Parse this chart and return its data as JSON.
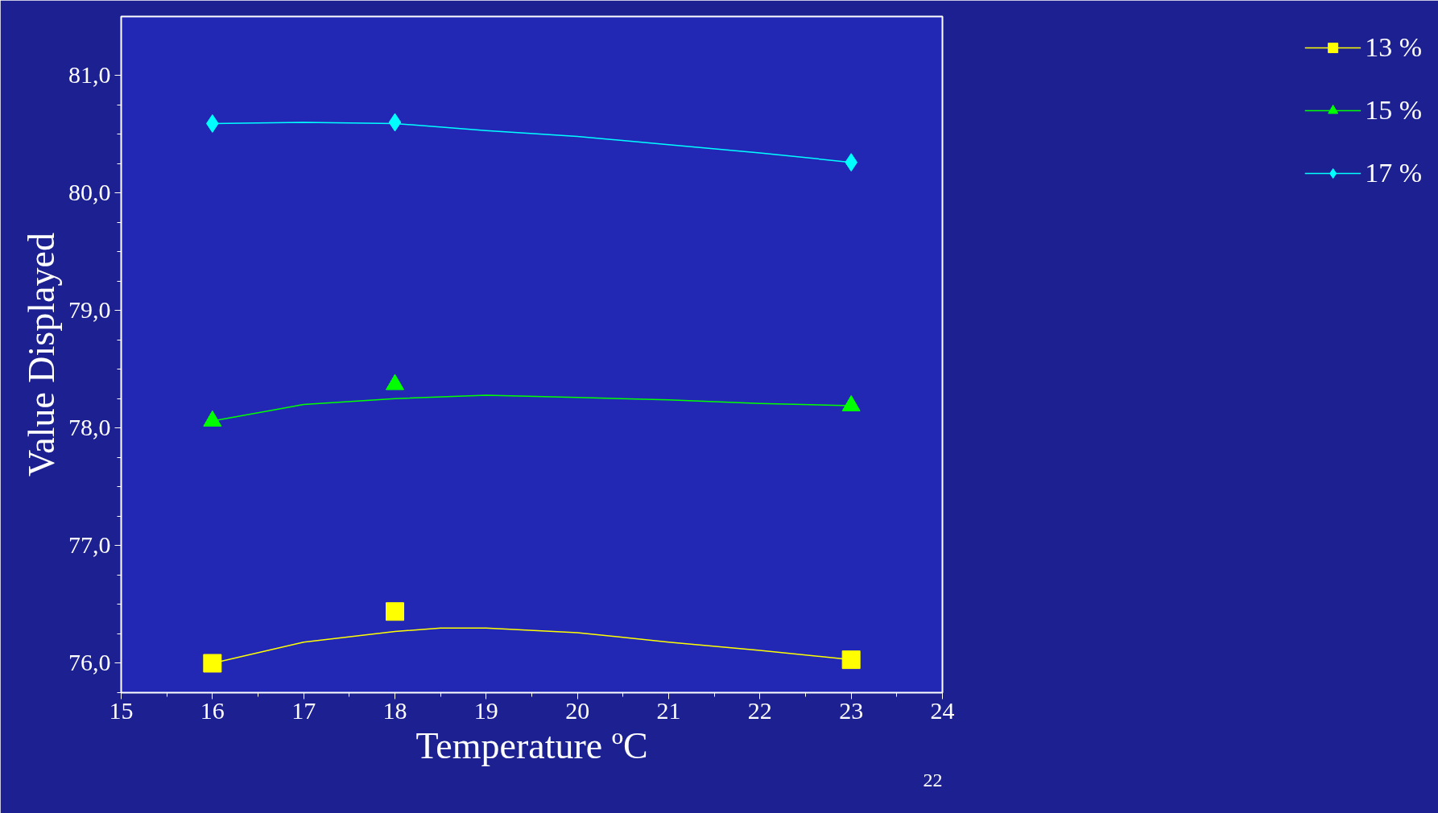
{
  "chart_data": {
    "type": "scatter",
    "xlabel": "Temperature ºC",
    "ylabel": "Value Displayed",
    "xlim": [
      15,
      24
    ],
    "xticks": [
      15,
      16,
      17,
      18,
      19,
      20,
      21,
      22,
      23,
      24
    ],
    "ylim": [
      75.75,
      81.5
    ],
    "yticks": [
      {
        "value": 76,
        "label": "76,0"
      },
      {
        "value": 77,
        "label": "77,0"
      },
      {
        "value": 78,
        "label": "78,0"
      },
      {
        "value": 79,
        "label": "79,0"
      },
      {
        "value": 80,
        "label": "80,0"
      },
      {
        "value": 81,
        "label": "81,0"
      }
    ],
    "grid": false,
    "legend": "right",
    "annotations": [
      "22"
    ],
    "series": [
      {
        "name": "13 %",
        "color": "#ffff00",
        "marker": "square",
        "x": [
          16,
          18,
          23
        ],
        "values": [
          76.0,
          76.44,
          76.03
        ]
      },
      {
        "name": "15 %",
        "color": "#00ff00",
        "marker": "triangle",
        "x": [
          16,
          18,
          23
        ],
        "values": [
          78.06,
          78.37,
          78.19
        ]
      },
      {
        "name": "17 %",
        "color": "#00ffff",
        "marker": "diamond",
        "x": [
          16,
          18,
          23
        ],
        "values": [
          80.59,
          80.6,
          80.26
        ]
      },
      {
        "type": "line",
        "color": "#ffff00",
        "x": [
          16,
          17,
          18,
          18.5,
          19,
          20,
          21,
          22,
          23
        ],
        "values": [
          76.0,
          76.18,
          76.27,
          76.3,
          76.3,
          76.26,
          76.18,
          76.11,
          76.03
        ]
      },
      {
        "type": "line",
        "color": "#00ff00",
        "x": [
          16,
          17,
          18,
          19,
          20,
          21,
          22,
          23
        ],
        "values": [
          78.06,
          78.2,
          78.25,
          78.28,
          78.26,
          78.24,
          78.21,
          78.19
        ]
      },
      {
        "type": "line",
        "color": "#00ffff",
        "x": [
          16,
          17,
          18,
          19,
          20,
          21,
          22,
          23
        ],
        "values": [
          80.59,
          80.6,
          80.59,
          80.53,
          80.48,
          80.41,
          80.34,
          80.26
        ]
      }
    ]
  }
}
